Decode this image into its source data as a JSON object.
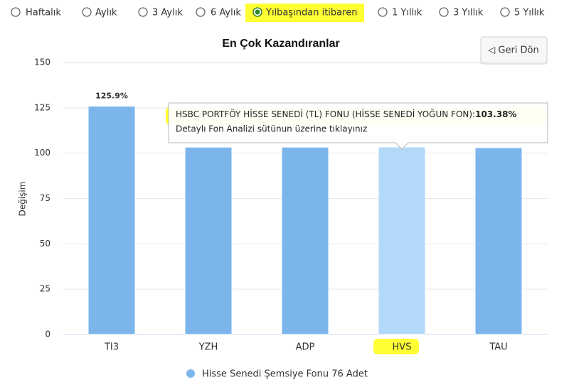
{
  "period_options": {
    "labels": [
      "Haftalık",
      "Aylık",
      "3 Aylık",
      "6 Aylık",
      "Yılbaşından itibaren",
      "1 Yıllık",
      "3 Yıllık",
      "5 Yıllık"
    ],
    "selected": 4
  },
  "back_button": "◁ Geri Dön",
  "chart_data": {
    "type": "bar",
    "title": "En Çok Kazandıranlar",
    "y_label": "Değişim",
    "categories": [
      "TI3",
      "YZH",
      "ADP",
      "HVS",
      "TAU"
    ],
    "series": [
      {
        "name": "Hisse Senedi Şemsiye Fonu 76 Adet",
        "color": "#7cb5ec",
        "bar_colors": [
          "#7cb5ec",
          "#7cb5ec",
          "#7cb5ec",
          "#b3d8fa",
          "#7cb5ec"
        ],
        "values": [
          125.9,
          103.3,
          103.3,
          103.38,
          103.0
        ],
        "value_labels": [
          "125.9%",
          null,
          null,
          null,
          null
        ]
      }
    ],
    "ylim": [
      0,
      150
    ],
    "yticks": [
      0,
      25,
      50,
      75,
      100,
      125,
      150
    ],
    "grid": true,
    "tooltip": {
      "name": "HSBC PORTFÖY HİSSE SENEDİ (TL) FONU (HİSSE SENEDİ YOĞUN FON):",
      "value_label": "103.38%",
      "hint": "Detaylı Fon Analizi sütünun üzerine tıklayınız"
    }
  }
}
